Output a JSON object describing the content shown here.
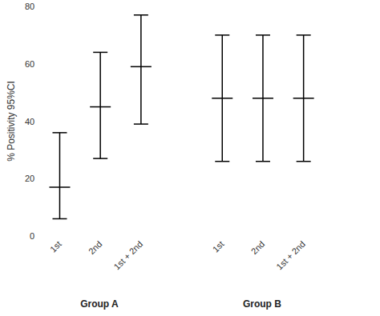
{
  "chart_data": {
    "type": "errorbar",
    "y_label": "% Positivity 95%CI",
    "categories": [
      "1st",
      "2nd",
      "1st + 2nd",
      null,
      "1st",
      "2nd",
      "1st + 2nd"
    ],
    "values": [
      17,
      45,
      59,
      null,
      48,
      48,
      48
    ],
    "lower": [
      6,
      27,
      39,
      null,
      26,
      26,
      26
    ],
    "upper": [
      36,
      64,
      77,
      null,
      70,
      70,
      70
    ],
    "annotations": [
      "Group A",
      "Group B"
    ],
    "color": "#000000",
    "ylim": [
      0,
      80
    ],
    "yticks": [
      0,
      20,
      40,
      60,
      80
    ],
    "grid": false
  }
}
